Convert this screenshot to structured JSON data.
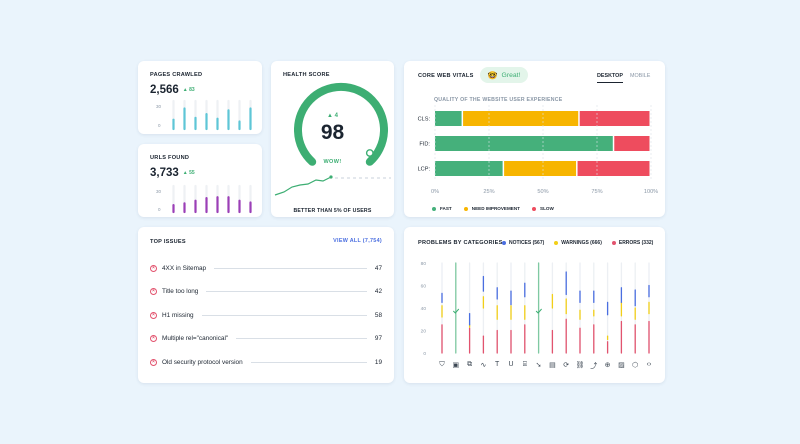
{
  "pages_crawled": {
    "label": "PAGES CRAWLED",
    "value": "2,566",
    "delta": "▲ 83",
    "ticks": [
      "30",
      "0"
    ],
    "bars": [
      10,
      22,
      12,
      16,
      11,
      20,
      8,
      22
    ],
    "color": "#5ec6d6"
  },
  "urls_found": {
    "label": "URLS FOUND",
    "value": "3,733",
    "delta": "▲ 55",
    "ticks": [
      "30",
      "0"
    ],
    "bars": [
      8,
      10,
      13,
      16,
      17,
      17,
      13,
      11
    ],
    "color": "#9b3fb7"
  },
  "health": {
    "label": "HEALTH SCORE",
    "delta": "▲ 4",
    "score": "98",
    "badge": "WOW!",
    "footer": "BETTER THAN 5% OF USERS",
    "color": "#3dae73"
  },
  "cwv": {
    "label": "CORE WEB VITALS",
    "status_emoji": "🤓",
    "status_text": "Great!",
    "tabs": [
      "DESKTOP",
      "MOBILE"
    ],
    "active_tab": "DESKTOP",
    "subtitle": "QUALITY OF THE WEBSITE USER EXPERIENCE",
    "legend": [
      {
        "label": "FAST",
        "color": "#45b07b"
      },
      {
        "label": "NEED IMPROVEMENT",
        "color": "#f7b500"
      },
      {
        "label": "SLOW",
        "color": "#ee4c5e"
      }
    ]
  },
  "top_issues": {
    "label": "TOP ISSUES",
    "view_all": "VIEW ALL (7,754)",
    "items": [
      {
        "text": "4XX in Sitemap",
        "count": "47"
      },
      {
        "text": "Title too long",
        "count": "42"
      },
      {
        "text": "H1 missing",
        "count": "58"
      },
      {
        "text": "Multiple rel=\"canonical\"",
        "count": "97"
      },
      {
        "text": "Old security protocol version",
        "count": "19"
      }
    ]
  },
  "problems": {
    "label": "PROBLEMS BY CATEGORIES",
    "legend": [
      {
        "label": "NOTICES (567)",
        "color": "#4a6ee0"
      },
      {
        "label": "WARNINGS (666)",
        "color": "#f2cf18"
      },
      {
        "label": "ERRORS (332)",
        "color": "#e2536e"
      }
    ],
    "ticks": [
      "80",
      "60",
      "40",
      "20",
      "0"
    ],
    "icons": [
      "shield-icon",
      "doc-icon",
      "copy-icon",
      "pulse-icon",
      "text-icon",
      "underline-icon",
      "code-doc-icon",
      "megaphone-icon",
      "file-icon",
      "refresh-icon",
      "link-icon",
      "external-link-icon",
      "globe-icon",
      "image-icon",
      "cube-icon",
      "code-icon"
    ],
    "icon_glyphs": [
      "⛉",
      "▣",
      "⧉",
      "∿",
      "T",
      "U",
      "⌸",
      "➘",
      "▤",
      "⟳",
      "⛓",
      "⤴",
      "⊕",
      "▨",
      "⬡",
      "‹›"
    ]
  },
  "chart_data": [
    {
      "type": "bar",
      "title": "PAGES CRAWLED",
      "categories": [
        "1",
        "2",
        "3",
        "4",
        "5",
        "6",
        "7",
        "8"
      ],
      "values": [
        10,
        22,
        12,
        16,
        11,
        20,
        8,
        22
      ],
      "ylim": [
        0,
        30
      ]
    },
    {
      "type": "bar",
      "title": "URLS FOUND",
      "categories": [
        "1",
        "2",
        "3",
        "4",
        "5",
        "6",
        "7",
        "8"
      ],
      "values": [
        8,
        10,
        13,
        16,
        17,
        17,
        13,
        11
      ],
      "ylim": [
        0,
        30
      ]
    },
    {
      "type": "bar",
      "title": "CORE WEB VITALS",
      "subtitle": "QUALITY OF THE WEBSITE USER EXPERIENCE",
      "orientation": "horizontal",
      "stacked": true,
      "categories": [
        "CLS:",
        "FID:",
        "LCP:"
      ],
      "series": [
        {
          "name": "FAST",
          "values": [
            13,
            83,
            32
          ]
        },
        {
          "name": "NEED IMPROVEMENT",
          "values": [
            54,
            0,
            34
          ]
        },
        {
          "name": "SLOW",
          "values": [
            33,
            17,
            34
          ]
        }
      ],
      "xticks": [
        "0%",
        "25%",
        "50%",
        "75%",
        "100%"
      ],
      "xlim": [
        0,
        100
      ]
    },
    {
      "type": "bar",
      "title": "PROBLEMS BY CATEGORIES",
      "stacked": true,
      "categories": [
        "shield",
        "doc",
        "copy",
        "pulse",
        "text",
        "underline",
        "code-doc",
        "megaphone",
        "file",
        "refresh",
        "link",
        "external-link",
        "globe",
        "image",
        "cube",
        "code"
      ],
      "series": [
        {
          "name": "NOTICES (567)",
          "values": [
            [
              45,
              53
            ],
            null,
            [
              25,
              35
            ],
            [
              55,
              68
            ],
            [
              48,
              58
            ],
            [
              43,
              55
            ],
            [
              50,
              62
            ],
            [
              57,
              78
            ],
            null,
            [
              52,
              72
            ],
            [
              45,
              55
            ],
            [
              45,
              55
            ],
            [
              34,
              45
            ],
            [
              45,
              58
            ],
            [
              42,
              56
            ],
            [
              50,
              60
            ]
          ]
        },
        {
          "name": "WARNINGS (666)",
          "values": [
            [
              32,
              42
            ],
            [
              48,
              60
            ],
            [
              23,
              25
            ],
            [
              40,
              50
            ],
            [
              30,
              42
            ],
            [
              30,
              42
            ],
            [
              30,
              42
            ],
            [
              40,
              55
            ],
            [
              40,
              52
            ],
            [
              35,
              48
            ],
            [
              30,
              38
            ],
            [
              33,
              38
            ],
            [
              12,
              15
            ],
            [
              33,
              45
            ],
            [
              30,
              40
            ],
            [
              35,
              45
            ]
          ]
        },
        {
          "name": "ERRORS (332)",
          "values": [
            [
              0,
              25
            ],
            [
              0,
              78
            ],
            [
              0,
              22
            ],
            [
              0,
              15
            ],
            [
              0,
              20
            ],
            [
              0,
              20
            ],
            [
              0,
              25
            ],
            [
              0,
              30
            ],
            [
              0,
              20
            ],
            [
              0,
              30
            ],
            [
              0,
              22
            ],
            [
              0,
              25
            ],
            [
              0,
              10
            ],
            [
              0,
              28
            ],
            [
              0,
              25
            ],
            [
              0,
              28
            ]
          ]
        }
      ],
      "checkmarks": [
        false,
        true,
        false,
        false,
        false,
        false,
        false,
        true,
        false,
        false,
        false,
        false,
        false,
        false,
        false,
        false
      ],
      "ylim": [
        0,
        80
      ],
      "yticks": [
        "80",
        "60",
        "40",
        "20",
        "0"
      ]
    }
  ]
}
